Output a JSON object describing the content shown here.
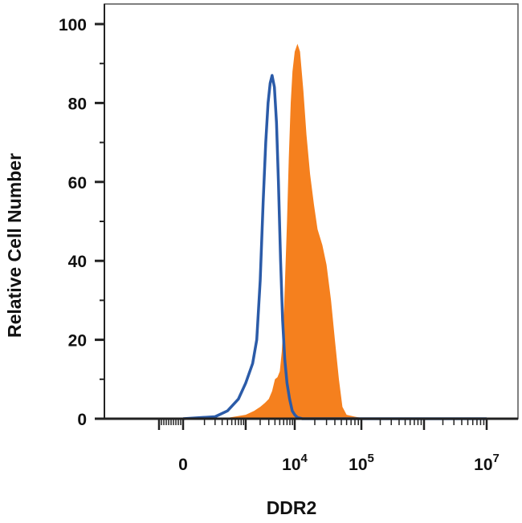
{
  "chart_data": {
    "type": "area",
    "title": "",
    "xlabel": "DDR2",
    "ylabel": "Relative Cell Number",
    "xscale": "biexponential",
    "ylim": [
      0,
      100
    ],
    "yticks": [
      0,
      20,
      40,
      60,
      80,
      100
    ],
    "xticks": [
      {
        "base": "0",
        "exp": ""
      },
      {
        "base": "10",
        "exp": "4"
      },
      {
        "base": "10",
        "exp": "5"
      },
      {
        "base": "10",
        "exp": "7"
      }
    ],
    "grid": false,
    "legend": "none",
    "series": [
      {
        "style": "filled",
        "color": "#F5801E",
        "points": [
          [
            300,
            0
          ],
          [
            1000,
            1
          ],
          [
            1500,
            2
          ],
          [
            2000,
            3
          ],
          [
            2500,
            4
          ],
          [
            3000,
            5
          ],
          [
            3500,
            7
          ],
          [
            4000,
            10
          ],
          [
            4500,
            10.5
          ],
          [
            5000,
            12
          ],
          [
            5500,
            17
          ],
          [
            6000,
            25
          ],
          [
            6500,
            38
          ],
          [
            7000,
            50
          ],
          [
            7600,
            66
          ],
          [
            8300,
            80
          ],
          [
            9000,
            88
          ],
          [
            10000,
            93
          ],
          [
            11000,
            95
          ],
          [
            12000,
            93
          ],
          [
            13500,
            83
          ],
          [
            15000,
            72
          ],
          [
            17000,
            62
          ],
          [
            19500,
            54
          ],
          [
            22000,
            48
          ],
          [
            26000,
            44
          ],
          [
            30000,
            39
          ],
          [
            35000,
            30
          ],
          [
            40000,
            20
          ],
          [
            46000,
            10
          ],
          [
            52000,
            3
          ],
          [
            60000,
            1
          ],
          [
            80000,
            0.5
          ],
          [
            120000,
            0
          ]
        ]
      },
      {
        "style": "line",
        "color": "#2B5BA8",
        "points": [
          [
            0,
            0
          ],
          [
            200,
            0.5
          ],
          [
            400,
            2
          ],
          [
            700,
            5
          ],
          [
            1000,
            9
          ],
          [
            1400,
            14
          ],
          [
            1700,
            20
          ],
          [
            2000,
            35
          ],
          [
            2300,
            55
          ],
          [
            2600,
            70
          ],
          [
            2900,
            80
          ],
          [
            3200,
            85
          ],
          [
            3500,
            87
          ],
          [
            3900,
            84
          ],
          [
            4300,
            75
          ],
          [
            4700,
            60
          ],
          [
            5200,
            40
          ],
          [
            5700,
            25
          ],
          [
            6300,
            15
          ],
          [
            7000,
            9
          ],
          [
            7900,
            5
          ],
          [
            8900,
            2
          ],
          [
            10000,
            1
          ],
          [
            11000,
            0.3
          ],
          [
            13000,
            0
          ],
          [
            10000000,
            0
          ]
        ]
      }
    ]
  }
}
